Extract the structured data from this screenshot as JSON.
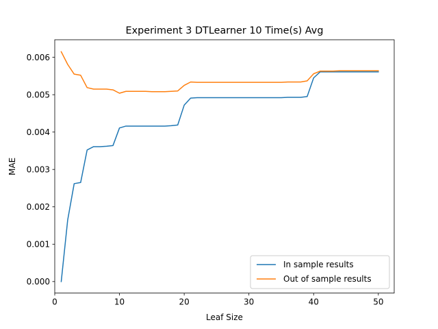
{
  "chart_data": {
    "type": "line",
    "title": "Experiment 3 DTLearner 10 Time(s) Avg",
    "xlabel": "Leaf Size",
    "ylabel": "MAE",
    "xlim": [
      0,
      52.45
    ],
    "ylim": [
      -0.000308,
      0.00647
    ],
    "xticks": [
      0,
      10,
      20,
      30,
      40,
      50
    ],
    "xtick_labels": [
      "0",
      "10",
      "20",
      "30",
      "40",
      "50"
    ],
    "yticks": [
      0.0,
      0.001,
      0.002,
      0.003,
      0.004,
      0.005,
      0.006
    ],
    "ytick_labels": [
      "0.000",
      "0.001",
      "0.002",
      "0.003",
      "0.004",
      "0.005",
      "0.006"
    ],
    "grid": false,
    "legend_position": "lower-right",
    "x": [
      1,
      2,
      3,
      4,
      5,
      6,
      7,
      8,
      9,
      10,
      11,
      12,
      13,
      14,
      15,
      16,
      17,
      18,
      19,
      20,
      21,
      22,
      23,
      24,
      25,
      26,
      27,
      28,
      29,
      30,
      31,
      32,
      33,
      34,
      35,
      36,
      37,
      38,
      39,
      40,
      41,
      42,
      43,
      44,
      45,
      46,
      47,
      48,
      49,
      50
    ],
    "series": [
      {
        "name": "In sample results",
        "color": "#1f77b4",
        "values": [
          0.0,
          0.00165,
          0.00262,
          0.00265,
          0.00352,
          0.00361,
          0.00361,
          0.00362,
          0.00364,
          0.00411,
          0.00416,
          0.00416,
          0.00416,
          0.00416,
          0.00416,
          0.00416,
          0.00416,
          0.00417,
          0.00419,
          0.00472,
          0.00491,
          0.00492,
          0.00492,
          0.00492,
          0.00492,
          0.00492,
          0.00492,
          0.00492,
          0.00492,
          0.00492,
          0.00492,
          0.00492,
          0.00492,
          0.00492,
          0.00492,
          0.00493,
          0.00493,
          0.00493,
          0.00495,
          0.00545,
          0.00561,
          0.00561,
          0.00561,
          0.00561,
          0.00561,
          0.00561,
          0.00561,
          0.00561,
          0.00561,
          0.00561
        ]
      },
      {
        "name": "Out of sample results",
        "color": "#ff7f0e",
        "values": [
          0.00615,
          0.00581,
          0.00555,
          0.00552,
          0.00519,
          0.00515,
          0.00515,
          0.00515,
          0.00513,
          0.00504,
          0.00509,
          0.00509,
          0.00509,
          0.00509,
          0.00508,
          0.00508,
          0.00508,
          0.00509,
          0.0051,
          0.00525,
          0.00534,
          0.00533,
          0.00533,
          0.00533,
          0.00533,
          0.00533,
          0.00533,
          0.00533,
          0.00533,
          0.00533,
          0.00533,
          0.00533,
          0.00533,
          0.00533,
          0.00533,
          0.00534,
          0.00534,
          0.00534,
          0.00537,
          0.00556,
          0.00563,
          0.00563,
          0.00563,
          0.00564,
          0.00564,
          0.00564,
          0.00564,
          0.00564,
          0.00564,
          0.00564
        ]
      }
    ]
  }
}
